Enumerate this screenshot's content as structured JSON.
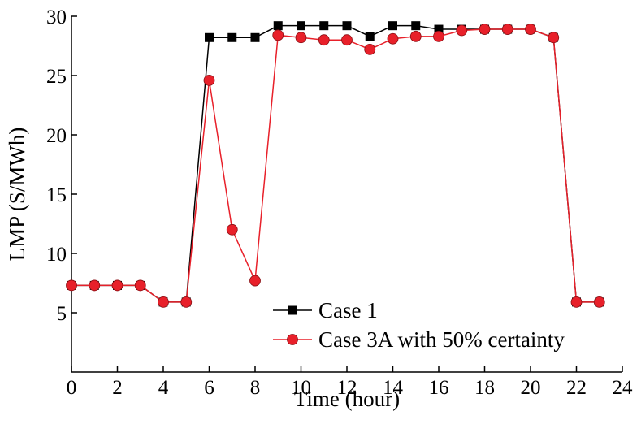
{
  "chart_data": {
    "type": "line",
    "title": "",
    "xlabel": "Time (hour)",
    "ylabel": "LMP (S/MWh)",
    "xlim": [
      0,
      24
    ],
    "ylim": [
      0,
      30
    ],
    "xticks": [
      0,
      2,
      4,
      6,
      8,
      10,
      12,
      14,
      16,
      18,
      20,
      22,
      24
    ],
    "yticks": [
      5,
      10,
      15,
      20,
      25,
      30
    ],
    "grid": false,
    "legend_position": "bottom-right",
    "x": [
      0,
      1,
      2,
      3,
      4,
      5,
      6,
      7,
      8,
      9,
      10,
      11,
      12,
      13,
      14,
      15,
      16,
      17,
      18,
      19,
      20,
      21,
      22,
      23
    ],
    "series": [
      {
        "name": "Case 1",
        "color": "#000000",
        "marker": "square",
        "values": [
          7.3,
          7.3,
          7.3,
          7.3,
          5.9,
          5.9,
          28.2,
          28.2,
          28.2,
          29.2,
          29.2,
          29.2,
          29.2,
          28.3,
          29.2,
          29.2,
          28.9,
          28.9,
          28.9,
          28.9,
          28.9,
          28.2,
          5.9,
          5.9
        ]
      },
      {
        "name": "Case 3A with 50% certainty",
        "color": "#e8202a",
        "marker": "circle",
        "values": [
          7.3,
          7.3,
          7.3,
          7.3,
          5.9,
          5.9,
          24.6,
          12.0,
          7.7,
          28.4,
          28.2,
          28.0,
          28.0,
          27.2,
          28.1,
          28.3,
          28.3,
          28.8,
          28.9,
          28.9,
          28.9,
          28.2,
          5.9,
          5.9
        ]
      }
    ]
  }
}
